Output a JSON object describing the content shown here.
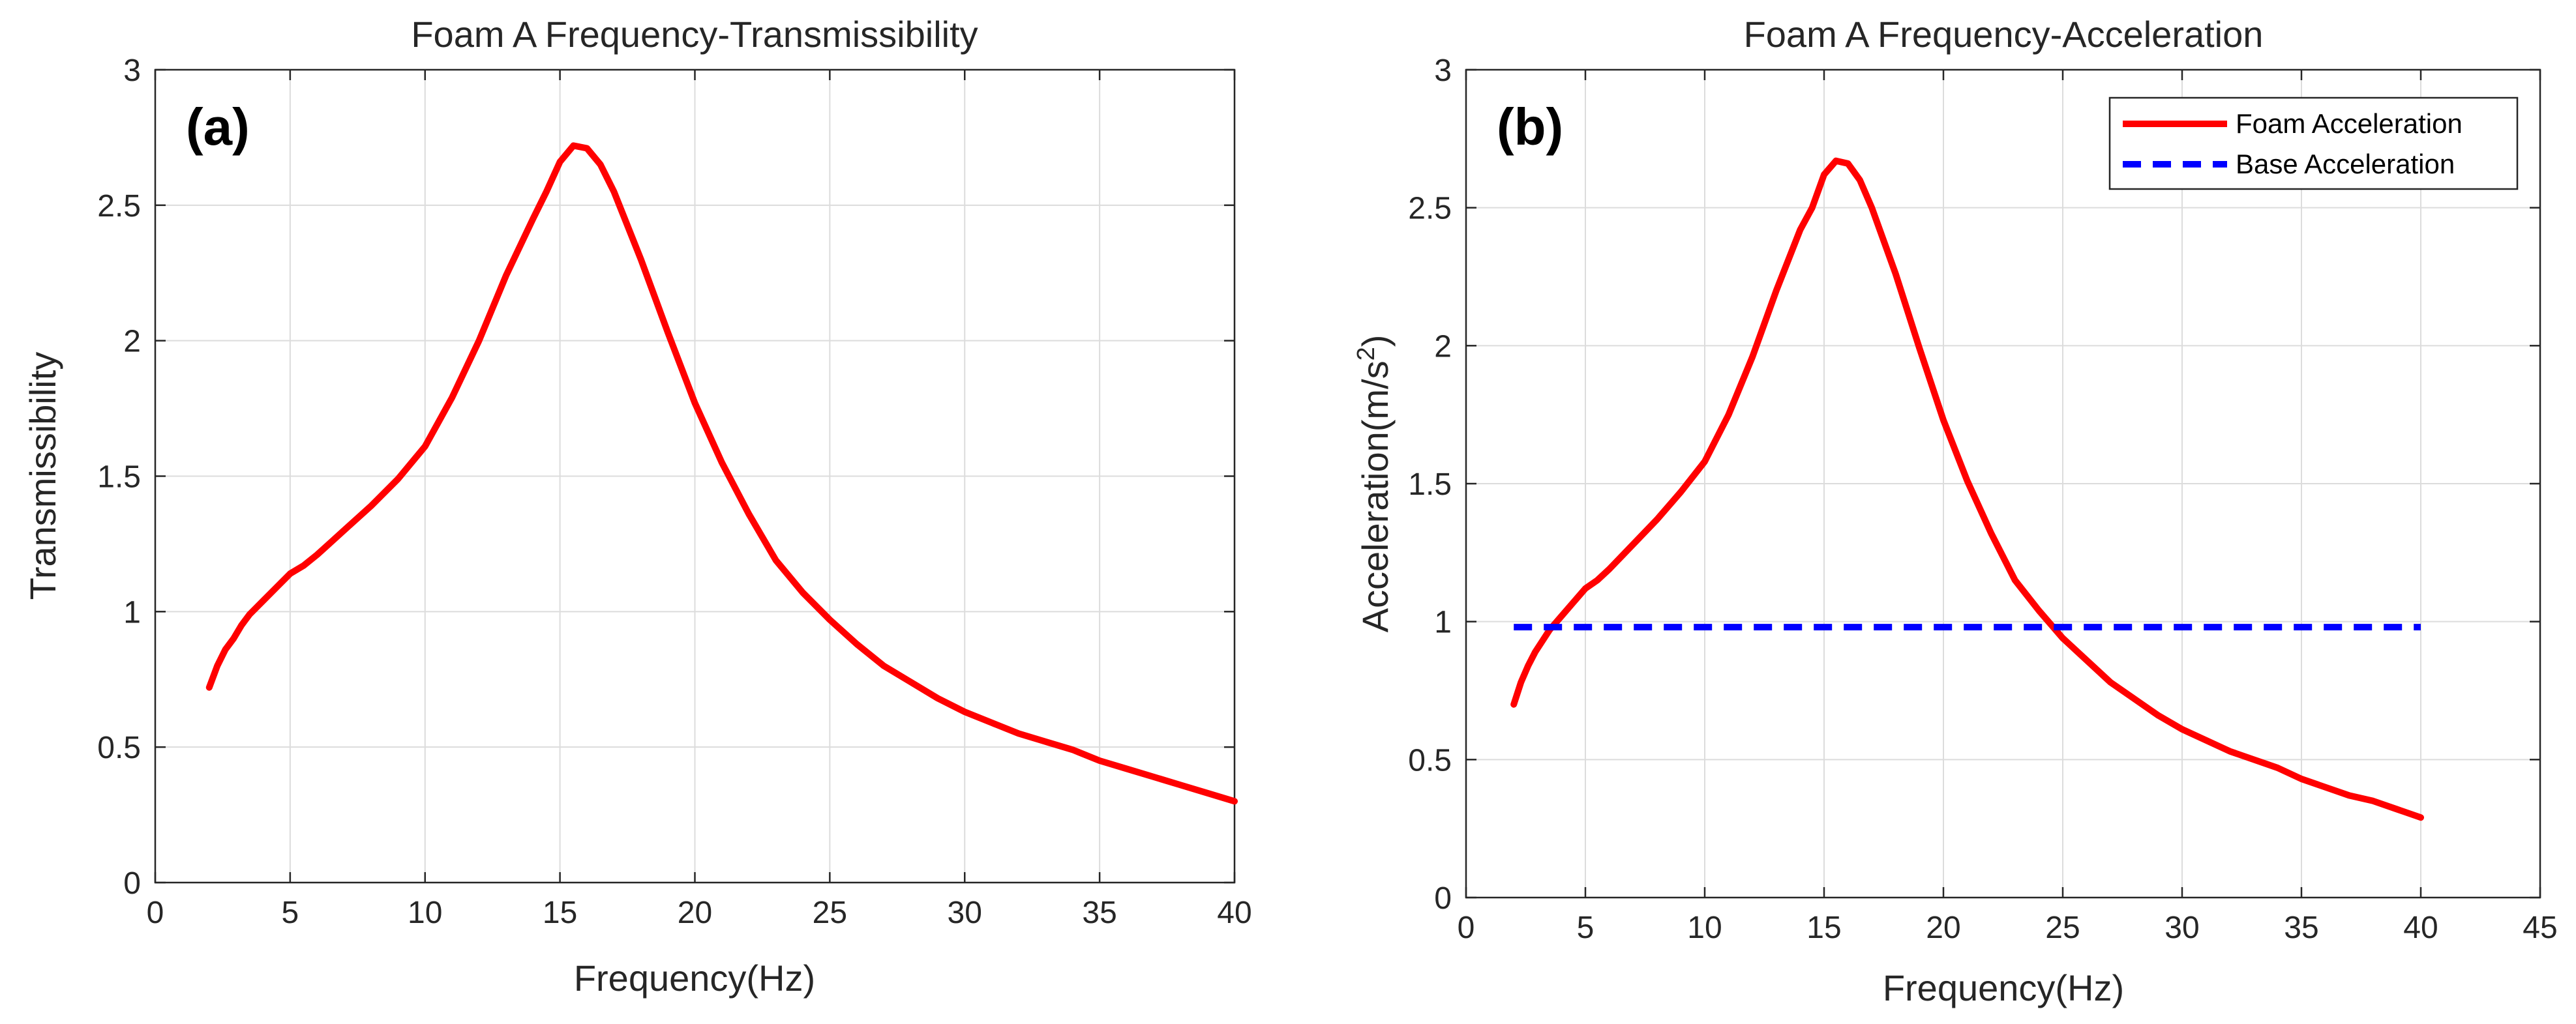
{
  "chart_data": [
    {
      "type": "line",
      "title": "Foam A Frequency-Transmissibility",
      "panel_label": "(a)",
      "xlabel": "Frequency(Hz)",
      "ylabel": "Transmissibility",
      "xlim": [
        0,
        40
      ],
      "ylim": [
        0,
        3
      ],
      "xticks": [
        0,
        5,
        10,
        15,
        20,
        25,
        30,
        35,
        40
      ],
      "yticks": [
        0,
        0.5,
        1,
        1.5,
        2,
        2.5,
        3
      ],
      "xtick_labels": [
        "0",
        "5",
        "10",
        "15",
        "20",
        "25",
        "30",
        "35",
        "40"
      ],
      "ytick_labels": [
        "0",
        "0.5",
        "1",
        "1.5",
        "2",
        "2.5",
        "3"
      ],
      "grid": true,
      "series": [
        {
          "name": "Transmissibility",
          "color": "#ff0000",
          "style": "solid",
          "x": [
            2.0,
            2.3,
            2.6,
            2.9,
            3.2,
            3.5,
            4,
            4.5,
            5,
            5.5,
            6,
            7,
            8,
            9,
            10,
            11,
            12,
            13,
            14,
            14.5,
            15,
            15.5,
            16,
            16.5,
            17,
            18,
            19,
            20,
            21,
            22,
            23,
            24,
            25,
            26,
            27,
            28,
            29,
            30,
            31,
            32,
            33,
            34,
            35,
            36,
            37,
            38,
            39,
            40
          ],
          "y": [
            0.72,
            0.8,
            0.86,
            0.9,
            0.95,
            0.99,
            1.04,
            1.09,
            1.14,
            1.17,
            1.21,
            1.3,
            1.39,
            1.49,
            1.61,
            1.79,
            2.0,
            2.24,
            2.45,
            2.55,
            2.66,
            2.72,
            2.71,
            2.65,
            2.55,
            2.3,
            2.03,
            1.77,
            1.55,
            1.36,
            1.19,
            1.07,
            0.97,
            0.88,
            0.8,
            0.74,
            0.68,
            0.63,
            0.59,
            0.55,
            0.52,
            0.49,
            0.45,
            0.42,
            0.39,
            0.36,
            0.33,
            0.3
          ]
        }
      ]
    },
    {
      "type": "line",
      "title": "Foam A Frequency-Acceleration",
      "panel_label": "(b)",
      "xlabel": "Frequency(Hz)",
      "ylabel": "Acceleration(m/s",
      "ylabel_sup": "2",
      "ylabel_end": ")",
      "xlim": [
        0,
        45
      ],
      "ylim": [
        0,
        3
      ],
      "xticks": [
        0,
        5,
        10,
        15,
        20,
        25,
        30,
        35,
        40,
        45
      ],
      "yticks": [
        0,
        0.5,
        1,
        1.5,
        2,
        2.5,
        3
      ],
      "xtick_labels": [
        "0",
        "5",
        "10",
        "15",
        "20",
        "25",
        "30",
        "35",
        "40",
        "45"
      ],
      "ytick_labels": [
        "0",
        "0.5",
        "1",
        "1.5",
        "2",
        "2.5",
        "3"
      ],
      "grid": true,
      "legend_position": "top-right",
      "series": [
        {
          "name": "Foam Acceleration",
          "color": "#ff0000",
          "style": "solid",
          "x": [
            2.0,
            2.3,
            2.6,
            2.9,
            3.2,
            3.5,
            4,
            4.5,
            5,
            5.5,
            6,
            7,
            8,
            9,
            10,
            11,
            12,
            13,
            14,
            14.5,
            15,
            15.5,
            16,
            16.5,
            17,
            18,
            19,
            20,
            21,
            22,
            23,
            24,
            25,
            26,
            27,
            28,
            29,
            30,
            31,
            32,
            33,
            34,
            35,
            36,
            37,
            38,
            39,
            40
          ],
          "y": [
            0.7,
            0.78,
            0.84,
            0.89,
            0.93,
            0.97,
            1.02,
            1.07,
            1.12,
            1.15,
            1.19,
            1.28,
            1.37,
            1.47,
            1.58,
            1.75,
            1.96,
            2.2,
            2.42,
            2.5,
            2.62,
            2.67,
            2.66,
            2.6,
            2.5,
            2.26,
            1.99,
            1.73,
            1.51,
            1.32,
            1.15,
            1.04,
            0.94,
            0.86,
            0.78,
            0.72,
            0.66,
            0.61,
            0.57,
            0.53,
            0.5,
            0.47,
            0.43,
            0.4,
            0.37,
            0.35,
            0.32,
            0.29
          ]
        },
        {
          "name": "Base Acceleration",
          "color": "#0000ff",
          "style": "dashed",
          "x": [
            2,
            40
          ],
          "y": [
            0.98,
            0.98
          ]
        }
      ]
    }
  ]
}
